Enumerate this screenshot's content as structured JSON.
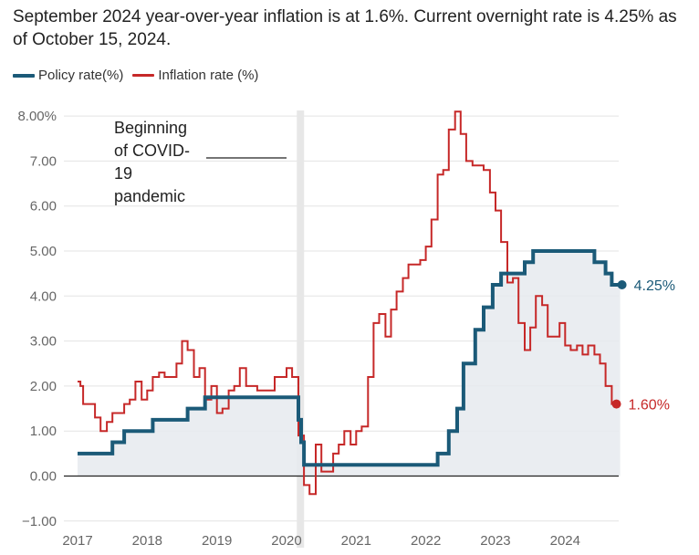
{
  "subtitle": "September 2024 year-over-year inflation is at 1.6%. Current overnight rate is 4.25% as of October 15, 2024.",
  "legend": [
    {
      "label": "Policy rate(%)",
      "color": "#1b5a78"
    },
    {
      "label": "Inflation rate (%)",
      "color": "#c62828"
    }
  ],
  "chart_data": {
    "type": "line",
    "title": "",
    "xlabel": "",
    "ylabel": "",
    "xlim": [
      2017,
      2024.9
    ],
    "ylim": [
      -1,
      8.2
    ],
    "x_ticks": [
      "2017",
      "2018",
      "2019",
      "2020",
      "2021",
      "2022",
      "2023",
      "2024"
    ],
    "y_ticks": [
      "−1.00",
      "0.00",
      "1.00",
      "2.00",
      "3.00",
      "4.00",
      "5.00",
      "6.00",
      "7.00",
      "8.00%"
    ],
    "annotation": {
      "lines": [
        "Beginning",
        "of COVID-",
        "19",
        "pandemic"
      ],
      "x": 2020.2
    },
    "series": [
      {
        "name": "Policy rate(%)",
        "color": "#1b5a78",
        "end_label": "4.25%",
        "points": [
          [
            2017.0,
            0.5
          ],
          [
            2017.5,
            0.5
          ],
          [
            2017.5,
            0.75
          ],
          [
            2017.67,
            0.75
          ],
          [
            2017.67,
            1.0
          ],
          [
            2018.08,
            1.0
          ],
          [
            2018.08,
            1.25
          ],
          [
            2018.58,
            1.25
          ],
          [
            2018.58,
            1.5
          ],
          [
            2018.83,
            1.5
          ],
          [
            2018.83,
            1.75
          ],
          [
            2020.17,
            1.75
          ],
          [
            2020.17,
            1.25
          ],
          [
            2020.21,
            1.25
          ],
          [
            2020.21,
            0.75
          ],
          [
            2020.25,
            0.75
          ],
          [
            2020.25,
            0.25
          ],
          [
            2022.17,
            0.25
          ],
          [
            2022.17,
            0.5
          ],
          [
            2022.33,
            0.5
          ],
          [
            2022.33,
            1.0
          ],
          [
            2022.45,
            1.0
          ],
          [
            2022.45,
            1.5
          ],
          [
            2022.54,
            1.5
          ],
          [
            2022.54,
            2.5
          ],
          [
            2022.71,
            2.5
          ],
          [
            2022.71,
            3.25
          ],
          [
            2022.83,
            3.25
          ],
          [
            2022.83,
            3.75
          ],
          [
            2022.96,
            3.75
          ],
          [
            2022.96,
            4.25
          ],
          [
            2023.08,
            4.25
          ],
          [
            2023.08,
            4.5
          ],
          [
            2023.42,
            4.5
          ],
          [
            2023.42,
            4.75
          ],
          [
            2023.54,
            4.75
          ],
          [
            2023.54,
            5.0
          ],
          [
            2024.42,
            5.0
          ],
          [
            2024.42,
            4.75
          ],
          [
            2024.58,
            4.75
          ],
          [
            2024.58,
            4.5
          ],
          [
            2024.67,
            4.5
          ],
          [
            2024.67,
            4.25
          ],
          [
            2024.79,
            4.25
          ]
        ]
      },
      {
        "name": "Inflation rate (%)",
        "color": "#c62828",
        "end_label": "1.60%",
        "points": [
          [
            2017.0,
            2.1
          ],
          [
            2017.04,
            2.1
          ],
          [
            2017.04,
            2.0
          ],
          [
            2017.08,
            2.0
          ],
          [
            2017.08,
            1.6
          ],
          [
            2017.25,
            1.6
          ],
          [
            2017.25,
            1.3
          ],
          [
            2017.33,
            1.3
          ],
          [
            2017.33,
            1.0
          ],
          [
            2017.42,
            1.0
          ],
          [
            2017.42,
            1.2
          ],
          [
            2017.5,
            1.2
          ],
          [
            2017.5,
            1.4
          ],
          [
            2017.67,
            1.4
          ],
          [
            2017.67,
            1.6
          ],
          [
            2017.75,
            1.6
          ],
          [
            2017.75,
            1.7
          ],
          [
            2017.83,
            1.7
          ],
          [
            2017.83,
            2.1
          ],
          [
            2017.92,
            2.1
          ],
          [
            2017.92,
            1.7
          ],
          [
            2018.0,
            1.7
          ],
          [
            2018.0,
            1.9
          ],
          [
            2018.08,
            1.9
          ],
          [
            2018.08,
            2.2
          ],
          [
            2018.17,
            2.2
          ],
          [
            2018.17,
            2.3
          ],
          [
            2018.25,
            2.3
          ],
          [
            2018.25,
            2.2
          ],
          [
            2018.42,
            2.2
          ],
          [
            2018.42,
            2.5
          ],
          [
            2018.5,
            2.5
          ],
          [
            2018.5,
            3.0
          ],
          [
            2018.58,
            3.0
          ],
          [
            2018.58,
            2.8
          ],
          [
            2018.67,
            2.8
          ],
          [
            2018.67,
            2.2
          ],
          [
            2018.75,
            2.2
          ],
          [
            2018.75,
            2.4
          ],
          [
            2018.83,
            2.4
          ],
          [
            2018.83,
            1.7
          ],
          [
            2018.92,
            1.7
          ],
          [
            2018.92,
            2.0
          ],
          [
            2019.0,
            2.0
          ],
          [
            2019.0,
            1.4
          ],
          [
            2019.08,
            1.4
          ],
          [
            2019.08,
            1.5
          ],
          [
            2019.17,
            1.5
          ],
          [
            2019.17,
            1.9
          ],
          [
            2019.25,
            1.9
          ],
          [
            2019.25,
            2.0
          ],
          [
            2019.33,
            2.0
          ],
          [
            2019.33,
            2.4
          ],
          [
            2019.42,
            2.4
          ],
          [
            2019.42,
            2.0
          ],
          [
            2019.58,
            2.0
          ],
          [
            2019.58,
            1.9
          ],
          [
            2019.83,
            1.9
          ],
          [
            2019.83,
            2.2
          ],
          [
            2019.92,
            2.2
          ],
          [
            2019.92,
            2.2
          ],
          [
            2020.0,
            2.2
          ],
          [
            2020.0,
            2.4
          ],
          [
            2020.08,
            2.4
          ],
          [
            2020.08,
            2.2
          ],
          [
            2020.17,
            2.2
          ],
          [
            2020.17,
            0.9
          ],
          [
            2020.25,
            0.9
          ],
          [
            2020.25,
            -0.2
          ],
          [
            2020.33,
            -0.2
          ],
          [
            2020.33,
            -0.4
          ],
          [
            2020.42,
            -0.4
          ],
          [
            2020.42,
            0.7
          ],
          [
            2020.5,
            0.7
          ],
          [
            2020.5,
            0.1
          ],
          [
            2020.67,
            0.1
          ],
          [
            2020.67,
            0.5
          ],
          [
            2020.75,
            0.5
          ],
          [
            2020.75,
            0.7
          ],
          [
            2020.83,
            0.7
          ],
          [
            2020.83,
            1.0
          ],
          [
            2020.92,
            1.0
          ],
          [
            2020.92,
            0.7
          ],
          [
            2021.0,
            0.7
          ],
          [
            2021.0,
            1.0
          ],
          [
            2021.08,
            1.0
          ],
          [
            2021.08,
            1.1
          ],
          [
            2021.17,
            1.1
          ],
          [
            2021.17,
            2.2
          ],
          [
            2021.25,
            2.2
          ],
          [
            2021.25,
            3.4
          ],
          [
            2021.33,
            3.4
          ],
          [
            2021.33,
            3.6
          ],
          [
            2021.42,
            3.6
          ],
          [
            2021.42,
            3.1
          ],
          [
            2021.5,
            3.1
          ],
          [
            2021.5,
            3.7
          ],
          [
            2021.58,
            3.7
          ],
          [
            2021.58,
            4.1
          ],
          [
            2021.67,
            4.1
          ],
          [
            2021.67,
            4.4
          ],
          [
            2021.75,
            4.4
          ],
          [
            2021.75,
            4.7
          ],
          [
            2021.92,
            4.7
          ],
          [
            2021.92,
            4.8
          ],
          [
            2022.0,
            4.8
          ],
          [
            2022.0,
            5.1
          ],
          [
            2022.08,
            5.1
          ],
          [
            2022.08,
            5.7
          ],
          [
            2022.17,
            5.7
          ],
          [
            2022.17,
            6.7
          ],
          [
            2022.25,
            6.7
          ],
          [
            2022.25,
            6.8
          ],
          [
            2022.33,
            6.8
          ],
          [
            2022.33,
            7.7
          ],
          [
            2022.42,
            7.7
          ],
          [
            2022.42,
            8.1
          ],
          [
            2022.5,
            8.1
          ],
          [
            2022.5,
            7.6
          ],
          [
            2022.58,
            7.6
          ],
          [
            2022.58,
            7.0
          ],
          [
            2022.67,
            7.0
          ],
          [
            2022.67,
            6.9
          ],
          [
            2022.83,
            6.9
          ],
          [
            2022.83,
            6.8
          ],
          [
            2022.92,
            6.8
          ],
          [
            2022.92,
            6.3
          ],
          [
            2023.0,
            6.3
          ],
          [
            2023.0,
            5.9
          ],
          [
            2023.08,
            5.9
          ],
          [
            2023.08,
            5.2
          ],
          [
            2023.17,
            5.2
          ],
          [
            2023.17,
            4.3
          ],
          [
            2023.25,
            4.3
          ],
          [
            2023.25,
            4.4
          ],
          [
            2023.33,
            4.4
          ],
          [
            2023.33,
            3.4
          ],
          [
            2023.42,
            3.4
          ],
          [
            2023.42,
            2.8
          ],
          [
            2023.5,
            2.8
          ],
          [
            2023.5,
            3.3
          ],
          [
            2023.58,
            3.3
          ],
          [
            2023.58,
            4.0
          ],
          [
            2023.67,
            4.0
          ],
          [
            2023.67,
            3.8
          ],
          [
            2023.75,
            3.8
          ],
          [
            2023.75,
            3.1
          ],
          [
            2023.83,
            3.1
          ],
          [
            2023.83,
            3.1
          ],
          [
            2023.92,
            3.1
          ],
          [
            2023.92,
            3.4
          ],
          [
            2024.0,
            3.4
          ],
          [
            2024.0,
            2.9
          ],
          [
            2024.08,
            2.9
          ],
          [
            2024.08,
            2.8
          ],
          [
            2024.17,
            2.8
          ],
          [
            2024.17,
            2.9
          ],
          [
            2024.25,
            2.9
          ],
          [
            2024.25,
            2.7
          ],
          [
            2024.33,
            2.7
          ],
          [
            2024.33,
            2.9
          ],
          [
            2024.42,
            2.9
          ],
          [
            2024.42,
            2.7
          ],
          [
            2024.5,
            2.7
          ],
          [
            2024.5,
            2.5
          ],
          [
            2024.58,
            2.5
          ],
          [
            2024.58,
            2.0
          ],
          [
            2024.67,
            2.0
          ],
          [
            2024.67,
            1.6
          ],
          [
            2024.75,
            1.6
          ]
        ]
      }
    ]
  }
}
